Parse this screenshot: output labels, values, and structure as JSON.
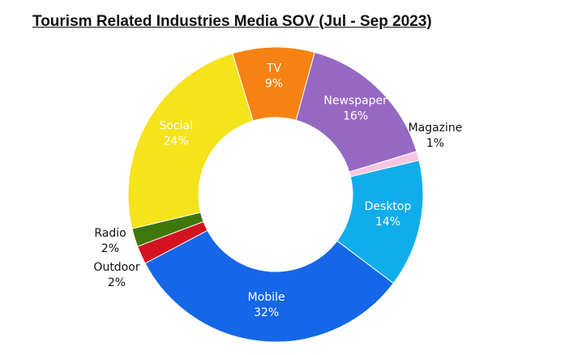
{
  "chart_data": {
    "type": "pie",
    "title": "Tourism Related Industries Media SOV (Jul - Sep 2023)",
    "slices": [
      {
        "name": "TV",
        "label": "9%",
        "value": 9,
        "color": "#f58213",
        "text_pos": "inside"
      },
      {
        "name": "Newspaper",
        "label": "16%",
        "value": 16,
        "color": "#9768c2",
        "text_pos": "inside"
      },
      {
        "name": "Magazine",
        "label": "1%",
        "value": 1,
        "color": "#f5c6e2",
        "text_pos": "outside"
      },
      {
        "name": "Desktop",
        "label": "14%",
        "value": 14,
        "color": "#0faeeb",
        "text_pos": "inside"
      },
      {
        "name": "Mobile",
        "label": "32%",
        "value": 32,
        "color": "#1567e8",
        "text_pos": "inside"
      },
      {
        "name": "Outdoor",
        "label": "2%",
        "value": 2,
        "color": "#d3141e",
        "text_pos": "outside"
      },
      {
        "name": "Radio",
        "label": "2%",
        "value": 2,
        "color": "#3f770a",
        "text_pos": "outside"
      },
      {
        "name": "Social",
        "label": "24%",
        "value": 24,
        "color": "#f5e31c",
        "text_pos": "inside"
      }
    ],
    "legend": "none"
  }
}
